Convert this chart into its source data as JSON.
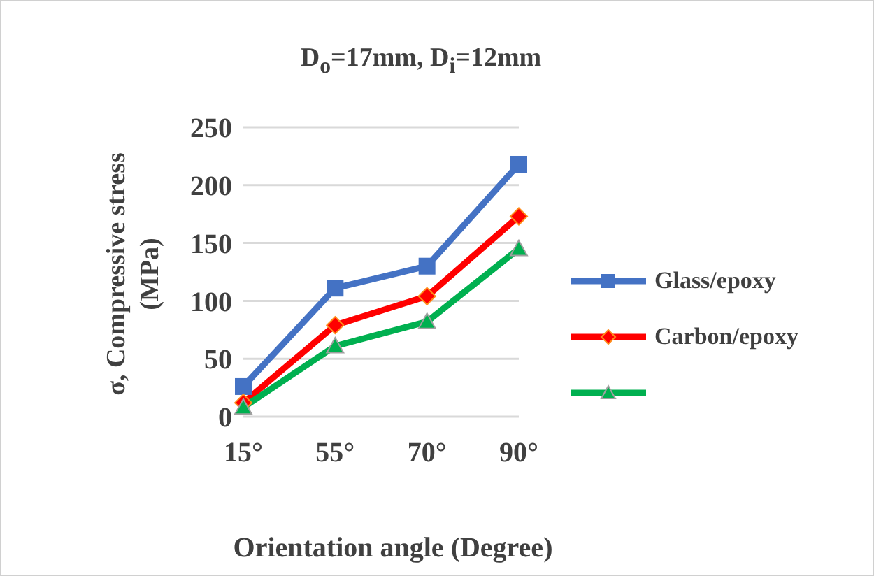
{
  "chart_data": {
    "type": "line",
    "title": "D$_{o}$=17mm, D$_{i}$=12mm",
    "xlabel": "Orientation angle (Degree)",
    "ylabel": "σ, Compressive stress (MPa)",
    "categories": [
      "15°",
      "55°",
      "70°",
      "90°"
    ],
    "series": [
      {
        "name": "Glass/epoxy",
        "color": "#4472c4",
        "marker": "square",
        "values": [
          26,
          111,
          130,
          218
        ]
      },
      {
        "name": "Carbon/epoxy",
        "color": "#ff0000",
        "marker": "diamond",
        "values": [
          12,
          79,
          104,
          173
        ]
      },
      {
        "color": "#00b050",
        "marker": "triangle",
        "values": [
          8,
          61,
          82,
          145
        ]
      }
    ],
    "ylim": [
      0,
      250
    ],
    "yticks": [
      0,
      50,
      100,
      150,
      200,
      250
    ],
    "grid": "y",
    "legend": "right",
    "line_style": "solid"
  }
}
